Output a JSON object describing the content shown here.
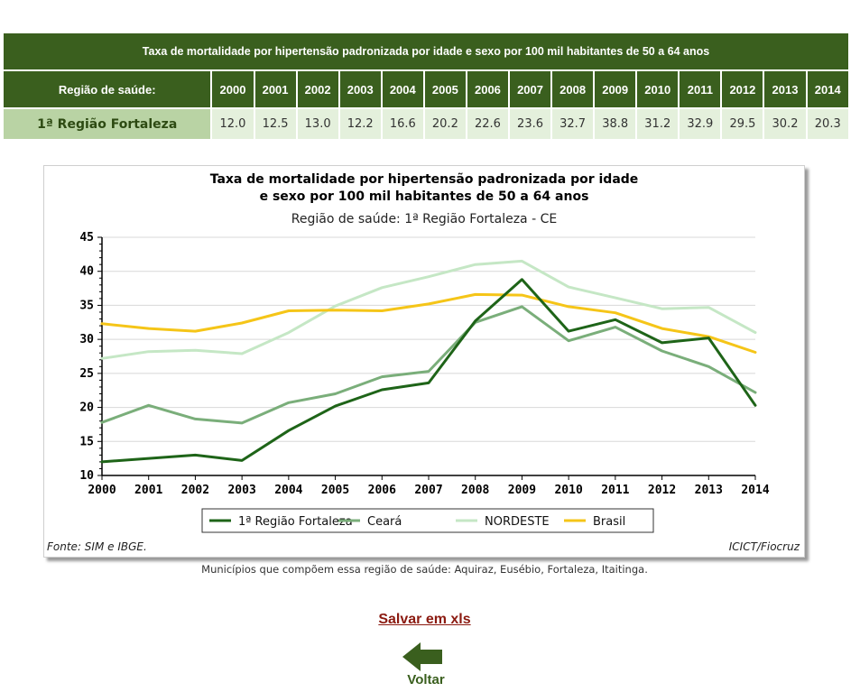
{
  "table": {
    "title": "Taxa de mortalidade por hipertensão padronizada por idade e sexo por 100 mil habitantes de 50 a 64 anos",
    "region_header": "Região de saúde:",
    "years": [
      "2000",
      "2001",
      "2002",
      "2003",
      "2004",
      "2005",
      "2006",
      "2007",
      "2008",
      "2009",
      "2010",
      "2011",
      "2012",
      "2013",
      "2014"
    ],
    "region": "1ª Região Fortaleza",
    "values": [
      "12.0",
      "12.5",
      "13.0",
      "12.2",
      "16.6",
      "20.2",
      "22.6",
      "23.6",
      "32.7",
      "38.8",
      "31.2",
      "32.9",
      "29.5",
      "30.2",
      "20.3"
    ]
  },
  "colors": {
    "header_bg": "#3a5f1e",
    "region_cell_bg": "#b9d3a4",
    "value_cell_bg": "#e4f0dc",
    "link_color": "#8b1a10"
  },
  "chart_data": {
    "type": "line",
    "title_line1": "Taxa de mortalidade por hipertensão padronizada por idade",
    "title_line2": "e sexo por 100 mil habitantes de 50 a 64 anos",
    "subtitle": "Região de saúde: 1ª Região Fortaleza - CE",
    "x": [
      "2000",
      "2001",
      "2002",
      "2003",
      "2004",
      "2005",
      "2006",
      "2007",
      "2008",
      "2009",
      "2010",
      "2011",
      "2012",
      "2013",
      "2014"
    ],
    "ylim": [
      10,
      45
    ],
    "yticks": [
      10,
      15,
      20,
      25,
      30,
      35,
      40,
      45
    ],
    "grid": true,
    "legend_position": "bottom",
    "series": [
      {
        "name": "1ª Região Fortaleza",
        "color": "#1e6418",
        "values": [
          12.0,
          12.5,
          13.0,
          12.2,
          16.6,
          20.2,
          22.6,
          23.6,
          32.7,
          38.8,
          31.2,
          32.9,
          29.5,
          30.2,
          20.3
        ]
      },
      {
        "name": "Ceará",
        "color": "#7aae7a",
        "values": [
          17.8,
          20.3,
          18.3,
          17.7,
          20.7,
          22.0,
          24.5,
          25.3,
          32.5,
          34.8,
          29.8,
          31.8,
          28.3,
          26.0,
          22.2
        ]
      },
      {
        "name": "NORDESTE",
        "color": "#c5e7c5",
        "values": [
          27.2,
          28.2,
          28.4,
          27.9,
          31.0,
          34.9,
          37.6,
          39.2,
          41.0,
          41.5,
          37.7,
          36.1,
          34.5,
          34.7,
          31.0
        ]
      },
      {
        "name": "Brasil",
        "color": "#f5c518",
        "values": [
          32.3,
          31.6,
          31.2,
          32.4,
          34.2,
          34.3,
          34.2,
          35.2,
          36.6,
          36.5,
          34.8,
          33.9,
          31.6,
          30.4,
          28.1
        ]
      }
    ],
    "source_left": "Fonte: SIM e IBGE.",
    "source_right": "ICICT/Fiocruz"
  },
  "caption": "Municípios que compõem essa região de saúde: Aquiraz, Eusébio, Fortaleza, Itaitinga.",
  "save_link": "Salvar em xls",
  "back_label": "Voltar",
  "back_icon": "left-arrow-icon"
}
